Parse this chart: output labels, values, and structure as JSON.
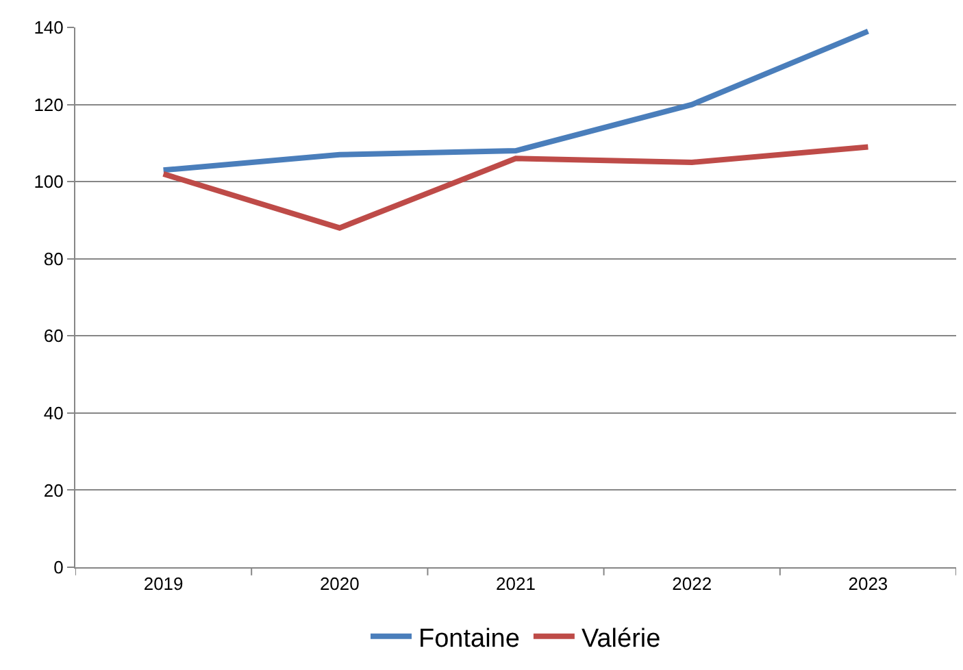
{
  "chart_data": {
    "type": "line",
    "categories": [
      "2019",
      "2020",
      "2021",
      "2022",
      "2023"
    ],
    "series": [
      {
        "name": "Fontaine",
        "color": "#4a7ebb",
        "values": [
          103,
          107,
          108,
          120,
          139
        ]
      },
      {
        "name": "Valérie",
        "color": "#be4b48",
        "values": [
          102,
          88,
          106,
          105,
          109
        ]
      }
    ],
    "ylim": [
      0,
      140
    ],
    "yticks": [
      0,
      20,
      40,
      60,
      80,
      100,
      120,
      140
    ],
    "grid": "y",
    "legend": "bottom",
    "marker": "none",
    "line_style": "solid"
  }
}
